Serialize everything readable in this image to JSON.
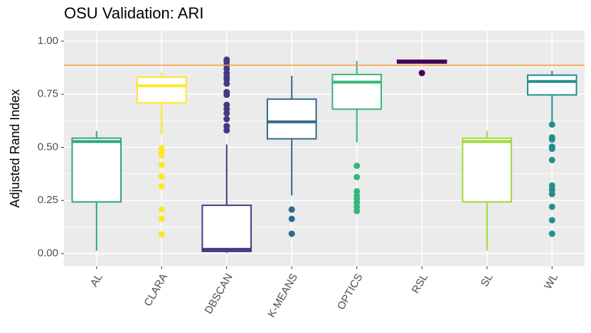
{
  "chart_data": {
    "type": "box",
    "title": "OSU Validation: ARI",
    "y_label": "Adjusted Rand Index",
    "categories": [
      "AL",
      "CLARA",
      "DBSCAN",
      "K-MEANS",
      "OPTICS",
      "RSL",
      "SL",
      "WL"
    ],
    "boxes": [
      {
        "color": "#2ea383",
        "low": 0.013,
        "q1": 0.243,
        "median": 0.527,
        "q3": 0.543,
        "high": 0.577,
        "outliers": []
      },
      {
        "color": "#fde725",
        "low": 0.56,
        "q1": 0.71,
        "median": 0.79,
        "q3": 0.83,
        "high": 0.853,
        "outliers": [
          0.497,
          0.48,
          0.463,
          0.417,
          0.363,
          0.317,
          0.207,
          0.163,
          0.09
        ]
      },
      {
        "color": "#443983",
        "low": 0.003,
        "q1": 0.01,
        "median": 0.02,
        "q3": 0.227,
        "high": 0.513,
        "outliers": [
          0.913,
          0.903,
          0.887,
          0.87,
          0.85,
          0.833,
          0.82,
          0.8,
          0.76,
          0.747,
          0.7,
          0.68,
          0.66,
          0.633,
          0.6,
          0.58
        ]
      },
      {
        "color": "#31688e",
        "low": 0.273,
        "q1": 0.54,
        "median": 0.62,
        "q3": 0.727,
        "high": 0.837,
        "outliers": [
          0.207,
          0.163,
          0.093
        ]
      },
      {
        "color": "#35b779",
        "low": 0.523,
        "q1": 0.68,
        "median": 0.807,
        "q3": 0.843,
        "high": 0.907,
        "outliers": [
          0.413,
          0.36,
          0.293,
          0.273,
          0.257,
          0.24,
          0.22,
          0.2
        ]
      },
      {
        "color": "#440154",
        "low": 0.897,
        "q1": 0.897,
        "median": 0.903,
        "q3": 0.91,
        "high": 0.913,
        "outliers": [
          0.85
        ]
      },
      {
        "color": "#a0da39",
        "low": 0.013,
        "q1": 0.243,
        "median": 0.527,
        "q3": 0.543,
        "high": 0.577,
        "outliers": []
      },
      {
        "color": "#21908d",
        "low": 0.62,
        "q1": 0.747,
        "median": 0.81,
        "q3": 0.84,
        "high": 0.86,
        "outliers": [
          0.607,
          0.547,
          0.537,
          0.503,
          0.493,
          0.44,
          0.32,
          0.3,
          0.28,
          0.22,
          0.157,
          0.093
        ]
      }
    ],
    "reference_line": {
      "value": 0.887,
      "color": "#f7a13a"
    },
    "ylim": [
      -0.06,
      1.05
    ],
    "yticks": [
      {
        "value": 0,
        "label": "0.00"
      },
      {
        "value": 0.25,
        "label": "0.25"
      },
      {
        "value": 0.5,
        "label": "0.50"
      },
      {
        "value": 0.75,
        "label": "0.75"
      },
      {
        "value": 1,
        "label": "1.00"
      }
    ],
    "y_minor_ticks": [
      0.125,
      0.375,
      0.625,
      0.875
    ],
    "grid": true
  }
}
